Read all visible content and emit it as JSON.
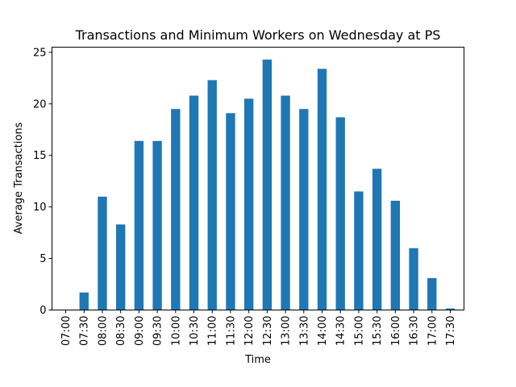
{
  "chart_data": {
    "type": "bar",
    "title": "Transactions and Minimum Workers on Wednesday at PS",
    "xlabel": "Time",
    "ylabel": "Average Transactions",
    "categories": [
      "07:00",
      "07:30",
      "08:00",
      "08:30",
      "09:00",
      "09:30",
      "10:00",
      "10:30",
      "11:00",
      "11:30",
      "12:00",
      "12:30",
      "13:00",
      "13:30",
      "14:00",
      "14:30",
      "15:00",
      "15:30",
      "16:00",
      "16:30",
      "17:00",
      "17:30"
    ],
    "values": [
      0,
      1.7,
      11.0,
      8.3,
      16.4,
      16.4,
      19.5,
      20.8,
      22.3,
      19.1,
      20.5,
      24.3,
      20.8,
      19.5,
      23.4,
      18.7,
      11.5,
      13.7,
      10.6,
      6.0,
      3.1,
      0.15
    ],
    "ylim": [
      0,
      25.5
    ],
    "yticks": [
      0,
      5,
      10,
      15,
      20,
      25
    ],
    "grid": false,
    "legend": "none",
    "bar_color": "#1f77b4"
  }
}
